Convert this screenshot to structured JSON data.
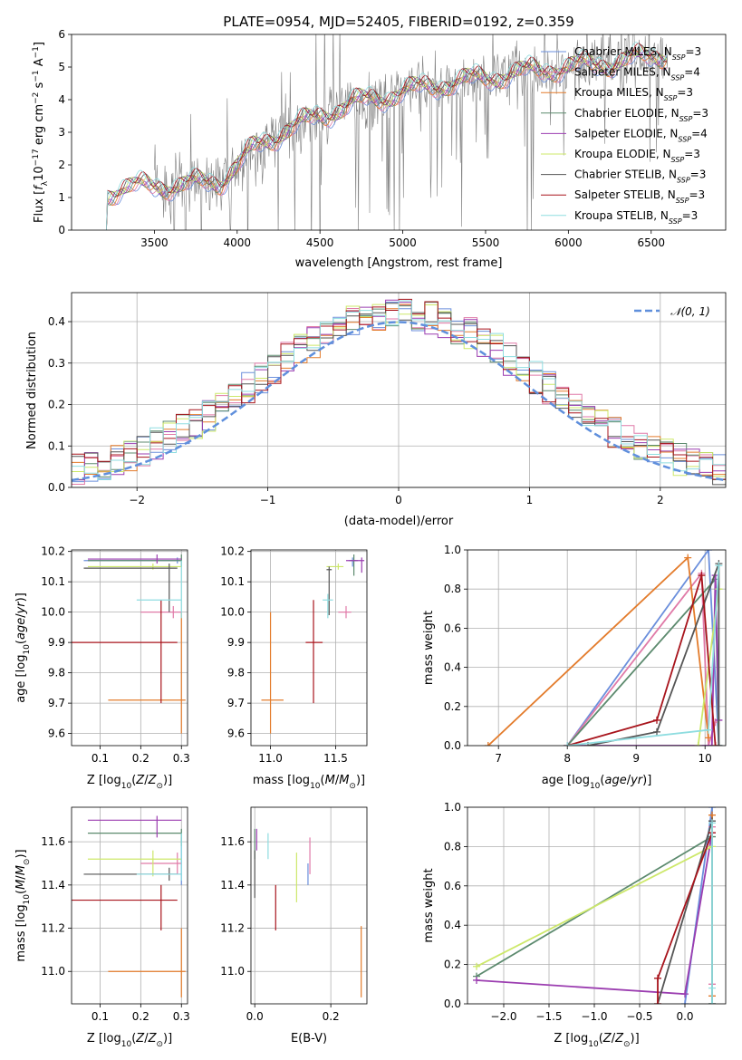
{
  "title": "PLATE=0954, MJD=52405, FIBERID=0192, z=0.359",
  "colors": {
    "chabrier_miles": "#6b8fdc",
    "salpeter_miles": "#e07aa8",
    "kroupa_miles": "#e37b2b",
    "chabrier_elodie": "#5c8a6e",
    "salpeter_elodie": "#9b3db0",
    "kroupa_elodie": "#cde86a",
    "chabrier_stelib": "#555555",
    "salpeter_stelib": "#a8141c",
    "kroupa_stelib": "#8fdde0",
    "data": "#808080",
    "normal": "#5f8fdc"
  },
  "legend": [
    {
      "label": "Chabrier MILES, N_SSP=3",
      "base": "Chabrier MILES, N",
      "sub": "SSP",
      "tail": "=3",
      "color": "#6b8fdc"
    },
    {
      "label": "Salpeter MILES, N_SSP=4",
      "base": "Salpeter MILES, N",
      "sub": "SSP",
      "tail": "=4",
      "color": "#e07aa8"
    },
    {
      "label": "Kroupa MILES, N_SSP=3",
      "base": "Kroupa MILES, N",
      "sub": "SSP",
      "tail": "=3",
      "color": "#e37b2b"
    },
    {
      "label": "Chabrier ELODIE, N_SSP=3",
      "base": "Chabrier ELODIE, N",
      "sub": "SSP",
      "tail": "=3",
      "color": "#5c8a6e"
    },
    {
      "label": "Salpeter ELODIE, N_SSP=4",
      "base": "Salpeter ELODIE, N",
      "sub": "SSP",
      "tail": "=4",
      "color": "#9b3db0"
    },
    {
      "label": "Kroupa ELODIE, N_SSP=3",
      "base": "Kroupa ELODIE, N",
      "sub": "SSP",
      "tail": "=3",
      "color": "#cde86a"
    },
    {
      "label": "Chabrier STELIB, N_SSP=3",
      "base": "Chabrier STELIB, N",
      "sub": "SSP",
      "tail": "=3",
      "color": "#555555"
    },
    {
      "label": "Salpeter STELIB, N_SSP=3",
      "base": "Salpeter STELIB, N",
      "sub": "SSP",
      "tail": "=3",
      "color": "#a8141c"
    },
    {
      "label": "Kroupa STELIB, N_SSP=3",
      "base": "Kroupa STELIB, N",
      "sub": "SSP",
      "tail": "=3",
      "color": "#8fdde0"
    }
  ],
  "chart_data": [
    {
      "id": "spectrum",
      "type": "line",
      "xlabel": "wavelength [Angstrom, rest frame]",
      "ylabel": "Flux [f_λ 10^-17 erg cm^-2 s^-1 A^-1]",
      "xlim": [
        3000,
        6950
      ],
      "ylim": [
        0,
        6
      ],
      "xticks": [
        3500,
        4000,
        4500,
        5000,
        5500,
        6000,
        6500
      ],
      "yticks": [
        0,
        1,
        2,
        3,
        4,
        5,
        6
      ],
      "grid": false,
      "legend_position": "top-right",
      "continuum": {
        "x": [
          3210,
          3300,
          3500,
          3700,
          3900,
          4000,
          4100,
          4300,
          4500,
          4700,
          4900,
          5000,
          5200,
          5400,
          5600,
          5800,
          6000,
          6200,
          6400,
          6600
        ],
        "y": [
          1.1,
          1.3,
          1.35,
          1.4,
          1.5,
          2.0,
          2.5,
          3.1,
          3.5,
          3.9,
          4.1,
          4.25,
          4.45,
          4.6,
          4.75,
          4.9,
          5.0,
          5.1,
          5.25,
          5.4
        ]
      },
      "series_note": "9 SSP model fits plotted over the observed spectrum (grey)"
    },
    {
      "id": "residuals",
      "type": "histogram",
      "xlabel": "(data-model)/error",
      "ylabel": "Normed distribution",
      "xlim": [
        -2.5,
        2.5
      ],
      "ylim": [
        0,
        0.47
      ],
      "xticks": [
        -2,
        -1,
        0,
        1,
        2
      ],
      "yticks": [
        0.0,
        0.1,
        0.2,
        0.3,
        0.4
      ],
      "grid": true,
      "legend": "𝒩(0, 1)",
      "legend_position": "top-right",
      "bin_width": 0.1
    },
    {
      "id": "age_vs_Z",
      "type": "errorbar",
      "xlabel": "Z [log10(Z/Z⊙)]",
      "ylabel": "age [log10(age/yr)]",
      "xlim": [
        0.03,
        0.315
      ],
      "ylim": [
        9.56,
        10.205
      ],
      "xticks": [
        0.1,
        0.2,
        0.3
      ],
      "yticks": [
        9.6,
        9.7,
        9.8,
        9.9,
        10.0,
        10.1,
        10.2
      ],
      "grid": true,
      "points": [
        {
          "color": "#6b8fdc",
          "x": 0.29,
          "y": 10.17,
          "xlo": 0.06,
          "xhi": 0.3,
          "ylo": 10.16,
          "yhi": 10.18
        },
        {
          "color": "#e07aa8",
          "x": 0.28,
          "y": 10.0,
          "xlo": 0.2,
          "xhi": 0.3,
          "ylo": 9.98,
          "yhi": 10.02
        },
        {
          "color": "#e37b2b",
          "x": 0.3,
          "y": 9.71,
          "xlo": 0.12,
          "xhi": 0.31,
          "ylo": 9.6,
          "yhi": 10.0
        },
        {
          "color": "#5c8a6e",
          "x": 0.3,
          "y": 10.17,
          "xlo": 0.07,
          "xhi": 0.3,
          "ylo": 10.15,
          "yhi": 10.19
        },
        {
          "color": "#9b3db0",
          "x": 0.24,
          "y": 10.175,
          "xlo": 0.07,
          "xhi": 0.3,
          "ylo": 10.16,
          "yhi": 10.19
        },
        {
          "color": "#cde86a",
          "x": 0.23,
          "y": 10.15,
          "xlo": 0.07,
          "xhi": 0.3,
          "ylo": 10.14,
          "yhi": 10.16
        },
        {
          "color": "#555555",
          "x": 0.27,
          "y": 10.145,
          "xlo": 0.06,
          "xhi": 0.29,
          "ylo": 10.0,
          "yhi": 10.16
        },
        {
          "color": "#a8141c",
          "x": 0.25,
          "y": 9.9,
          "xlo": 0.03,
          "xhi": 0.29,
          "ylo": 9.7,
          "yhi": 10.04
        },
        {
          "color": "#8fdde0",
          "x": 0.3,
          "y": 10.04,
          "xlo": 0.19,
          "xhi": 0.3,
          "ylo": 9.98,
          "yhi": 10.17
        }
      ]
    },
    {
      "id": "age_vs_mass",
      "type": "errorbar",
      "xlabel": "mass [log10(M/M⊙)]",
      "ylabel": "",
      "xlim": [
        10.85,
        11.74
      ],
      "ylim": [
        9.56,
        10.205
      ],
      "xticks": [
        11.0,
        11.5
      ],
      "yticks": [
        9.6,
        9.7,
        9.8,
        9.9,
        10.0,
        10.1,
        10.2
      ],
      "grid": true,
      "points": [
        {
          "color": "#6b8fdc",
          "x": 11.63,
          "y": 10.17,
          "xlo": 11.6,
          "xhi": 11.66,
          "ylo": 10.15,
          "yhi": 10.18
        },
        {
          "color": "#e07aa8",
          "x": 11.58,
          "y": 10.0,
          "xlo": 11.52,
          "xhi": 11.62,
          "ylo": 9.98,
          "yhi": 10.02
        },
        {
          "color": "#e37b2b",
          "x": 11.0,
          "y": 9.71,
          "xlo": 10.93,
          "xhi": 11.1,
          "ylo": 9.6,
          "yhi": 10.0
        },
        {
          "color": "#5c8a6e",
          "x": 11.64,
          "y": 10.17,
          "xlo": 11.61,
          "xhi": 11.67,
          "ylo": 10.12,
          "yhi": 10.19
        },
        {
          "color": "#9b3db0",
          "x": 11.7,
          "y": 10.17,
          "xlo": 11.58,
          "xhi": 11.72,
          "ylo": 10.13,
          "yhi": 10.18
        },
        {
          "color": "#cde86a",
          "x": 11.52,
          "y": 10.15,
          "xlo": 11.43,
          "xhi": 11.56,
          "ylo": 10.14,
          "yhi": 10.16
        },
        {
          "color": "#555555",
          "x": 11.45,
          "y": 10.14,
          "xlo": 11.43,
          "xhi": 11.47,
          "ylo": 9.99,
          "yhi": 10.15
        },
        {
          "color": "#a8141c",
          "x": 11.33,
          "y": 9.9,
          "xlo": 11.27,
          "xhi": 11.4,
          "ylo": 9.7,
          "yhi": 10.04
        },
        {
          "color": "#8fdde0",
          "x": 11.44,
          "y": 10.04,
          "xlo": 11.4,
          "xhi": 11.48,
          "ylo": 9.98,
          "yhi": 10.06
        }
      ]
    },
    {
      "id": "massweight_vs_age",
      "type": "line",
      "xlabel": "age [log10(age/yr)]",
      "ylabel": "mass weight",
      "xlim": [
        6.55,
        10.3
      ],
      "ylim": [
        0,
        1
      ],
      "xticks": [
        7,
        8,
        9,
        10
      ],
      "yticks": [
        0.0,
        0.2,
        0.4,
        0.6,
        0.8,
        1.0
      ],
      "grid": true,
      "series": [
        {
          "color": "#6b8fdc",
          "x": [
            8.0,
            10.05,
            10.2
          ],
          "y": [
            0.0,
            1.0,
            0.0
          ]
        },
        {
          "color": "#e07aa8",
          "x": [
            8.0,
            9.95,
            10.05,
            10.15
          ],
          "y": [
            0.0,
            0.88,
            0.0,
            0.12
          ]
        },
        {
          "color": "#e37b2b",
          "x": [
            6.85,
            9.75,
            10.05
          ],
          "y": [
            0.0,
            0.96,
            0.04
          ]
        },
        {
          "color": "#5c8a6e",
          "x": [
            8.0,
            10.15,
            10.2
          ],
          "y": [
            0.0,
            0.85,
            0.0
          ]
        },
        {
          "color": "#9b3db0",
          "x": [
            8.0,
            10.1,
            10.15,
            10.2
          ],
          "y": [
            0.0,
            0.0,
            0.87,
            0.13
          ]
        },
        {
          "color": "#cde86a",
          "x": [
            9.9,
            10.2
          ],
          "y": [
            0.0,
            0.8
          ]
        },
        {
          "color": "#555555",
          "x": [
            8.3,
            9.3,
            10.2,
            10.2
          ],
          "y": [
            0.0,
            0.07,
            0.93,
            0.0
          ]
        },
        {
          "color": "#a8141c",
          "x": [
            8.0,
            9.3,
            9.95,
            10.15
          ],
          "y": [
            0.0,
            0.13,
            0.87,
            0.0
          ]
        },
        {
          "color": "#8fdde0",
          "x": [
            8.0,
            10.05,
            10.2
          ],
          "y": [
            0.0,
            0.08,
            0.92
          ]
        }
      ]
    },
    {
      "id": "mass_vs_Z",
      "type": "errorbar",
      "xlabel": "Z [log10(Z/Z⊙)]",
      "ylabel": "mass [log10(M/M⊙)]",
      "xlim": [
        0.03,
        0.315
      ],
      "ylim": [
        10.85,
        11.76
      ],
      "xticks": [
        0.1,
        0.2,
        0.3
      ],
      "yticks": [
        11.0,
        11.2,
        11.4,
        11.6
      ],
      "grid": true,
      "points": [
        {
          "color": "#6b8fdc",
          "x": 0.3,
          "y": 11.45,
          "xlo": 0.2,
          "xhi": 0.3,
          "ylo": 11.4,
          "yhi": 11.62
        },
        {
          "color": "#e07aa8",
          "x": 0.29,
          "y": 11.5,
          "xlo": 0.2,
          "xhi": 0.3,
          "ylo": 11.45,
          "yhi": 11.55
        },
        {
          "color": "#e37b2b",
          "x": 0.3,
          "y": 11.0,
          "xlo": 0.12,
          "xhi": 0.31,
          "ylo": 10.88,
          "yhi": 11.2
        },
        {
          "color": "#5c8a6e",
          "x": 0.3,
          "y": 11.64,
          "xlo": 0.07,
          "xhi": 0.3,
          "ylo": 11.58,
          "yhi": 11.66
        },
        {
          "color": "#9b3db0",
          "x": 0.24,
          "y": 11.7,
          "xlo": 0.07,
          "xhi": 0.3,
          "ylo": 11.62,
          "yhi": 11.72
        },
        {
          "color": "#cde86a",
          "x": 0.23,
          "y": 11.52,
          "xlo": 0.07,
          "xhi": 0.3,
          "ylo": 11.44,
          "yhi": 11.56
        },
        {
          "color": "#555555",
          "x": 0.27,
          "y": 11.45,
          "xlo": 0.06,
          "xhi": 0.29,
          "ylo": 11.42,
          "yhi": 11.48
        },
        {
          "color": "#a8141c",
          "x": 0.25,
          "y": 11.33,
          "xlo": 0.03,
          "xhi": 0.29,
          "ylo": 11.19,
          "yhi": 11.4
        },
        {
          "color": "#8fdde0",
          "x": 0.3,
          "y": 11.45,
          "xlo": 0.19,
          "xhi": 0.3,
          "ylo": 11.42,
          "yhi": 11.64
        }
      ]
    },
    {
      "id": "mass_vs_ebv",
      "type": "errorbar",
      "xlabel": "E(B-V)",
      "ylabel": "",
      "xlim": [
        -0.01,
        0.295
      ],
      "ylim": [
        10.85,
        11.76
      ],
      "xticks": [
        0.0,
        0.2
      ],
      "yticks": [
        11.0,
        11.2,
        11.4,
        11.6
      ],
      "grid": true,
      "points": [
        {
          "color": "#6b8fdc",
          "x": 0.14,
          "y": 11.45,
          "ylo": 11.4,
          "yhi": 11.5
        },
        {
          "color": "#e07aa8",
          "x": 0.145,
          "y": 11.52,
          "ylo": 11.45,
          "yhi": 11.62
        },
        {
          "color": "#e37b2b",
          "x": 0.28,
          "y": 11.0,
          "ylo": 10.88,
          "yhi": 11.21
        },
        {
          "color": "#5c8a6e",
          "x": 0.0,
          "y": 11.6,
          "ylo": 11.52,
          "yhi": 11.66
        },
        {
          "color": "#9b3db0",
          "x": 0.005,
          "y": 11.6,
          "ylo": 11.56,
          "yhi": 11.66
        },
        {
          "color": "#cde86a",
          "x": 0.11,
          "y": 11.45,
          "ylo": 11.32,
          "yhi": 11.55
        },
        {
          "color": "#555555",
          "x": 0.0,
          "y": 11.45,
          "ylo": 11.34,
          "yhi": 11.56
        },
        {
          "color": "#a8141c",
          "x": 0.055,
          "y": 11.3,
          "ylo": 11.19,
          "yhi": 11.4
        },
        {
          "color": "#8fdde0",
          "x": 0.035,
          "y": 11.6,
          "ylo": 11.52,
          "yhi": 11.64
        }
      ]
    },
    {
      "id": "massweight_vs_Z",
      "type": "line",
      "xlabel": "Z [log10(Z/Z⊙)]",
      "ylabel": "mass weight",
      "xlim": [
        -2.4,
        0.45
      ],
      "ylim": [
        0,
        1
      ],
      "xticks": [
        -2.0,
        -1.5,
        -1.0,
        -0.5,
        0.0
      ],
      "yticks": [
        0.0,
        0.2,
        0.4,
        0.6,
        0.8,
        1.0
      ],
      "grid": true,
      "series": [
        {
          "color": "#6b8fdc",
          "x": [
            0.0,
            0.3,
            0.3
          ],
          "y": [
            0.0,
            1.0,
            0.0
          ]
        },
        {
          "color": "#e07aa8",
          "x": [
            0.3,
            0.3,
            0.3
          ],
          "y": [
            0.0,
            0.9,
            0.1
          ]
        },
        {
          "color": "#e37b2b",
          "x": [
            0.3,
            0.3,
            0.3
          ],
          "y": [
            0.04,
            0.96,
            0.0
          ]
        },
        {
          "color": "#5c8a6e",
          "x": [
            -2.3,
            0.3,
            0.3
          ],
          "y": [
            0.14,
            0.85,
            0.0
          ]
        },
        {
          "color": "#9b3db0",
          "x": [
            -2.3,
            0.0,
            0.3,
            0.3
          ],
          "y": [
            0.12,
            0.05,
            0.87,
            0.0
          ]
        },
        {
          "color": "#cde86a",
          "x": [
            -2.3,
            0.3,
            0.3
          ],
          "y": [
            0.19,
            0.8,
            0.0
          ]
        },
        {
          "color": "#555555",
          "x": [
            -0.3,
            0.3,
            0.3
          ],
          "y": [
            0.0,
            0.93,
            0.0
          ]
        },
        {
          "color": "#a8141c",
          "x": [
            -0.3,
            -0.3,
            0.3
          ],
          "y": [
            0.0,
            0.13,
            0.87
          ]
        },
        {
          "color": "#8fdde0",
          "x": [
            0.3,
            0.3,
            0.3
          ],
          "y": [
            0.08,
            0.92,
            0.0
          ]
        }
      ]
    }
  ]
}
